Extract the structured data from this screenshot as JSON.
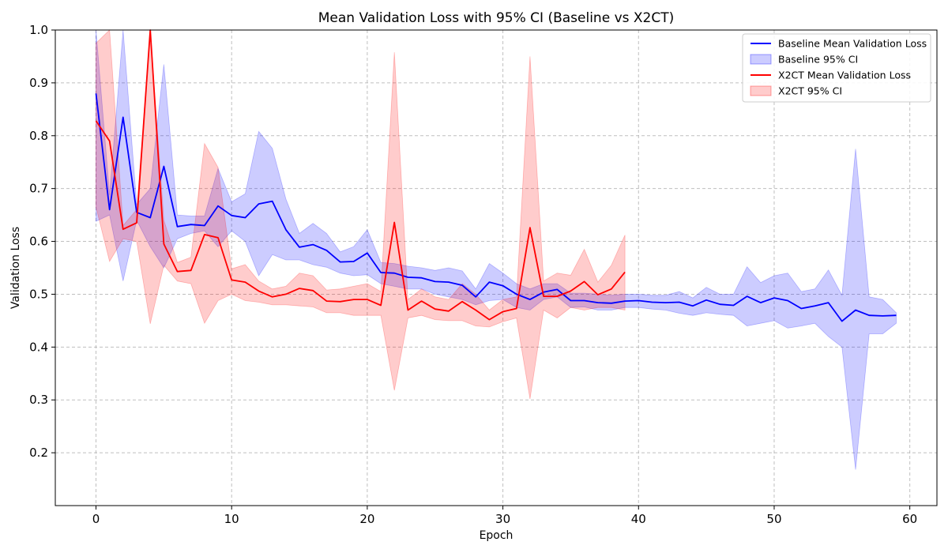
{
  "chart_data": {
    "type": "line",
    "title": "Mean Validation Loss with 95% CI (Baseline vs X2CT)",
    "xlabel": "Epoch",
    "ylabel": "Validation Loss",
    "xlim": [
      -3,
      62
    ],
    "ylim": [
      0.1,
      1.0
    ],
    "xticks": [
      0,
      10,
      20,
      30,
      40,
      50,
      60
    ],
    "yticks": [
      0.2,
      0.3,
      0.4,
      0.5,
      0.6,
      0.7,
      0.8,
      0.9,
      1.0
    ],
    "xtick_labels": [
      "0",
      "10",
      "20",
      "30",
      "40",
      "50",
      "60"
    ],
    "ytick_labels": [
      "0.2",
      "0.3",
      "0.4",
      "0.5",
      "0.6",
      "0.7",
      "0.8",
      "0.9",
      "1.0"
    ],
    "grid": true,
    "legend_position": "top-right",
    "series": [
      {
        "name": "Baseline Mean Validation Loss",
        "ci_name": "Baseline 95% CI",
        "color": "#0000ff",
        "x": [
          0,
          1,
          2,
          3,
          4,
          5,
          6,
          7,
          8,
          9,
          10,
          11,
          12,
          13,
          14,
          15,
          16,
          17,
          18,
          19,
          20,
          21,
          22,
          23,
          24,
          25,
          26,
          27,
          28,
          29,
          30,
          31,
          32,
          33,
          34,
          35,
          36,
          37,
          38,
          39,
          40,
          41,
          42,
          43,
          44,
          45,
          46,
          47,
          48,
          49,
          50,
          51,
          52,
          53,
          54,
          55,
          56,
          57,
          58,
          59
        ],
        "mean": [
          0.88,
          0.66,
          0.835,
          0.655,
          0.645,
          0.742,
          0.628,
          0.632,
          0.63,
          0.667,
          0.649,
          0.645,
          0.671,
          0.676,
          0.622,
          0.589,
          0.594,
          0.583,
          0.561,
          0.562,
          0.578,
          0.541,
          0.54,
          0.532,
          0.531,
          0.524,
          0.523,
          0.517,
          0.495,
          0.523,
          0.516,
          0.5,
          0.49,
          0.504,
          0.509,
          0.488,
          0.488,
          0.484,
          0.483,
          0.487,
          0.488,
          0.485,
          0.484,
          0.485,
          0.478,
          0.489,
          0.481,
          0.479,
          0.496,
          0.484,
          0.493,
          0.488,
          0.473,
          0.478,
          0.484,
          0.449,
          0.47,
          0.46,
          0.459,
          0.46
        ],
        "lower": [
          0.638,
          0.65,
          0.525,
          0.64,
          0.59,
          0.55,
          0.605,
          0.615,
          0.62,
          0.59,
          0.62,
          0.6,
          0.535,
          0.575,
          0.565,
          0.565,
          0.556,
          0.551,
          0.54,
          0.535,
          0.537,
          0.52,
          0.515,
          0.51,
          0.51,
          0.5,
          0.495,
          0.49,
          0.48,
          0.488,
          0.49,
          0.475,
          0.47,
          0.49,
          0.495,
          0.475,
          0.476,
          0.47,
          0.47,
          0.475,
          0.475,
          0.472,
          0.47,
          0.464,
          0.46,
          0.465,
          0.462,
          0.46,
          0.44,
          0.445,
          0.45,
          0.436,
          0.44,
          0.445,
          0.42,
          0.4,
          0.168,
          0.425,
          0.425,
          0.445
        ],
        "upper": [
          1.0,
          0.688,
          1.0,
          0.67,
          0.7,
          0.935,
          0.65,
          0.648,
          0.648,
          0.738,
          0.675,
          0.69,
          0.808,
          0.776,
          0.68,
          0.615,
          0.634,
          0.615,
          0.58,
          0.59,
          0.622,
          0.56,
          0.558,
          0.553,
          0.55,
          0.545,
          0.55,
          0.544,
          0.51,
          0.558,
          0.54,
          0.52,
          0.51,
          0.52,
          0.52,
          0.502,
          0.502,
          0.5,
          0.498,
          0.5,
          0.5,
          0.498,
          0.498,
          0.505,
          0.493,
          0.513,
          0.5,
          0.5,
          0.552,
          0.522,
          0.535,
          0.54,
          0.505,
          0.51,
          0.546,
          0.498,
          0.775,
          0.495,
          0.49,
          0.465
        ]
      },
      {
        "name": "X2CT Mean Validation Loss",
        "ci_name": "X2CT 95% CI",
        "color": "#ff0000",
        "x": [
          0,
          1,
          2,
          3,
          4,
          5,
          6,
          7,
          8,
          9,
          10,
          11,
          12,
          13,
          14,
          15,
          16,
          17,
          18,
          19,
          20,
          21,
          22,
          23,
          24,
          25,
          26,
          27,
          28,
          29,
          30,
          31,
          32,
          33,
          34,
          35,
          36,
          37,
          38,
          39
        ],
        "mean": [
          0.828,
          0.79,
          0.623,
          0.635,
          1.0,
          0.595,
          0.543,
          0.545,
          0.613,
          0.607,
          0.527,
          0.523,
          0.506,
          0.495,
          0.5,
          0.511,
          0.507,
          0.487,
          0.486,
          0.49,
          0.49,
          0.479,
          0.636,
          0.47,
          0.487,
          0.472,
          0.468,
          0.486,
          0.47,
          0.452,
          0.467,
          0.473,
          0.626,
          0.496,
          0.496,
          0.506,
          0.524,
          0.499,
          0.51,
          0.542
        ],
        "lower": [
          0.665,
          0.562,
          0.605,
          0.6,
          0.444,
          0.555,
          0.525,
          0.52,
          0.445,
          0.488,
          0.5,
          0.488,
          0.485,
          0.48,
          0.48,
          0.478,
          0.476,
          0.465,
          0.465,
          0.46,
          0.46,
          0.46,
          0.318,
          0.455,
          0.46,
          0.452,
          0.45,
          0.45,
          0.44,
          0.438,
          0.448,
          0.455,
          0.302,
          0.47,
          0.455,
          0.475,
          0.47,
          0.475,
          0.475,
          0.47
        ],
        "upper": [
          0.975,
          1.0,
          0.63,
          0.66,
          1.0,
          0.64,
          0.56,
          0.57,
          0.785,
          0.74,
          0.548,
          0.556,
          0.525,
          0.51,
          0.515,
          0.54,
          0.535,
          0.508,
          0.51,
          0.515,
          0.52,
          0.505,
          0.958,
          0.49,
          0.51,
          0.495,
          0.49,
          0.52,
          0.5,
          0.47,
          0.49,
          0.495,
          0.95,
          0.525,
          0.54,
          0.536,
          0.585,
          0.523,
          0.555,
          0.612
        ]
      }
    ]
  }
}
